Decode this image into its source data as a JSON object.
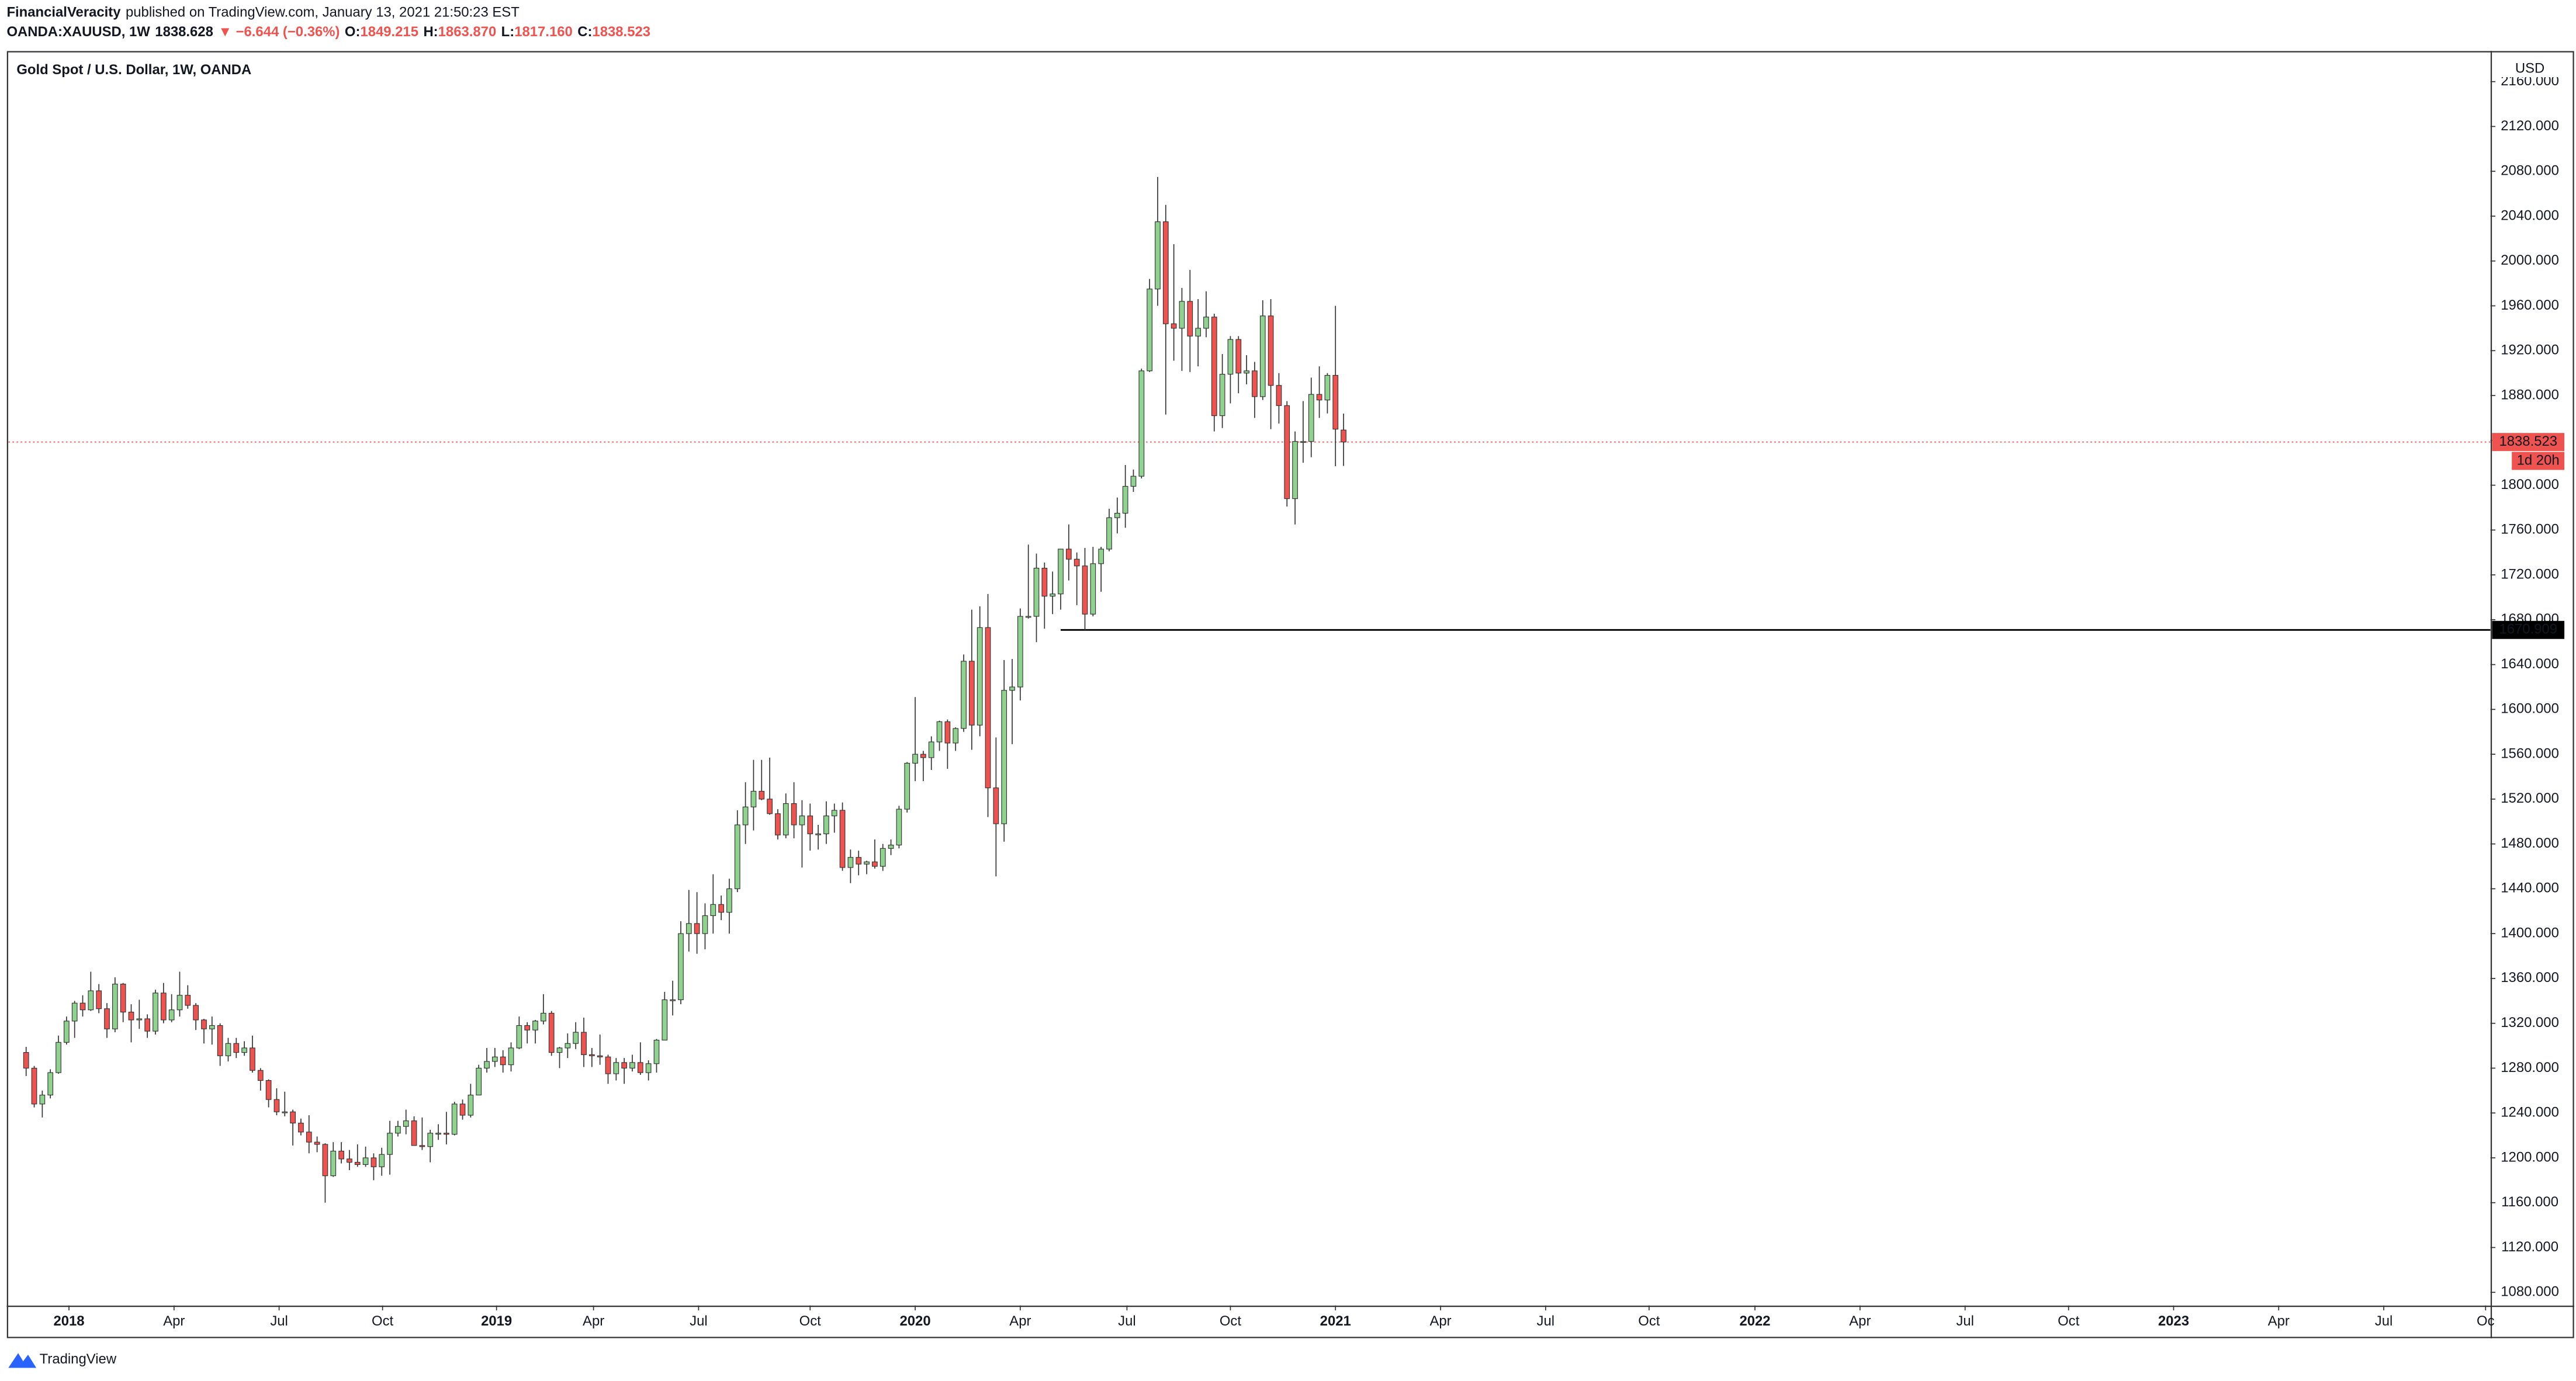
{
  "header": {
    "author": "FinancialVeracity",
    "published": "published on TradingView.com, January 13, 2021 21:50:23 EST",
    "quote": [
      {
        "text": "OANDA:XAUUSD, 1W",
        "color": "#131722"
      },
      {
        "text": "1838.628",
        "color": "#131722"
      },
      {
        "text": "▼ −6.644 (−0.36%)",
        "color": "#ef5350"
      },
      {
        "text": "O:",
        "color": "#131722"
      },
      {
        "text": "1849.215",
        "color": "#ef5350"
      },
      {
        "text": "H:",
        "color": "#131722"
      },
      {
        "text": "1863.870",
        "color": "#ef5350"
      },
      {
        "text": "L:",
        "color": "#131722"
      },
      {
        "text": "1817.160",
        "color": "#ef5350"
      },
      {
        "text": "C:",
        "color": "#131722"
      },
      {
        "text": "1838.523",
        "color": "#ef5350"
      }
    ]
  },
  "chart_data": {
    "type": "candlestick",
    "title": "Gold Spot / U.S. Dollar, 1W, OANDA",
    "y_unit": "USD",
    "up_color": "#8fd18f",
    "down_color": "#ef5350",
    "outline_color": "#333333",
    "open": [
      1294,
      1280,
      1248,
      1256,
      1276,
      1303,
      1322,
      1338,
      1332,
      1349,
      1333,
      1315,
      1355,
      1330,
      1323,
      1324,
      1313,
      1347,
      1323,
      1332,
      1345,
      1336,
      1323,
      1315,
      1318,
      1291,
      1302,
      1294,
      1298,
      1278,
      1269,
      1252,
      1241,
      1241,
      1231,
      1223,
      1214,
      1212,
      1184,
      1206,
      1199,
      1196,
      1194,
      1200,
      1192,
      1203,
      1222,
      1228,
      1233,
      1211,
      1210,
      1222,
      1222,
      1221,
      1248,
      1238,
      1256,
      1280,
      1286,
      1290,
      1283,
      1298,
      1318,
      1314,
      1322,
      1329,
      1294,
      1298,
      1302,
      1312,
      1292,
      1291,
      1290,
      1275,
      1285,
      1280,
      1285,
      1276,
      1284,
      1305,
      1341,
      1341,
      1400,
      1409,
      1400,
      1416,
      1426,
      1419,
      1440,
      1497,
      1513,
      1527,
      1520,
      1507,
      1488,
      1516,
      1497,
      1505,
      1489,
      1489,
      1505,
      1510,
      1459,
      1468,
      1462,
      1464,
      1460,
      1476,
      1479,
      1511,
      1552,
      1560,
      1557,
      1571,
      1589,
      1570,
      1583,
      1643,
      1586,
      1673,
      1530,
      1498,
      1617,
      1620,
      1683,
      1683,
      1726,
      1701,
      1703,
      1743,
      1734,
      1728,
      1685,
      1730,
      1743,
      1771,
      1775,
      1799,
      1808,
      1902,
      1975,
      2035,
      1944,
      1940,
      1964,
      1933,
      1940,
      1950,
      1862,
      1899,
      1930,
      1900,
      1902,
      1879,
      1951,
      1889,
      1871,
      1788,
      1839,
      1839,
      1881,
      1876,
      1898,
      1849.215
    ],
    "high": [
      1299,
      1282,
      1260,
      1279,
      1309,
      1326,
      1340,
      1345,
      1366,
      1355,
      1338,
      1361,
      1356,
      1337,
      1341,
      1328,
      1350,
      1356,
      1346,
      1366,
      1354,
      1338,
      1324,
      1326,
      1320,
      1307,
      1307,
      1304,
      1309,
      1280,
      1270,
      1262,
      1259,
      1243,
      1235,
      1238,
      1219,
      1213,
      1214,
      1214,
      1207,
      1212,
      1210,
      1204,
      1209,
      1233,
      1233,
      1243,
      1237,
      1236,
      1225,
      1230,
      1241,
      1250,
      1252,
      1266,
      1283,
      1298,
      1298,
      1296,
      1303,
      1326,
      1321,
      1323,
      1346,
      1331,
      1299,
      1311,
      1321,
      1325,
      1298,
      1310,
      1292,
      1289,
      1289,
      1292,
      1303,
      1287,
      1306,
      1348,
      1358,
      1411,
      1439,
      1437,
      1427,
      1453,
      1434,
      1449,
      1510,
      1535,
      1555,
      1555,
      1557,
      1511,
      1525,
      1535,
      1519,
      1516,
      1497,
      1518,
      1516,
      1517,
      1475,
      1474,
      1465,
      1484,
      1480,
      1484,
      1514,
      1553,
      1611,
      1563,
      1576,
      1590,
      1591,
      1584,
      1649,
      1689,
      1692,
      1703,
      1575,
      1644,
      1645,
      1690,
      1747,
      1739,
      1731,
      1723,
      1743,
      1765,
      1740,
      1744,
      1745,
      1745,
      1779,
      1789,
      1818,
      1814,
      1904,
      1984,
      2075,
      2050,
      2015,
      1976,
      1992,
      1966,
      1973,
      1953,
      1917,
      1933,
      1933,
      1916,
      1910,
      1965,
      1966,
      1900,
      1875,
      1848,
      1875,
      1896,
      1906,
      1900,
      1960,
      1863.87
    ],
    "low": [
      1273,
      1245,
      1236,
      1253,
      1275,
      1301,
      1307,
      1326,
      1331,
      1329,
      1307,
      1312,
      1321,
      1303,
      1315,
      1307,
      1310,
      1320,
      1321,
      1326,
      1333,
      1314,
      1302,
      1301,
      1282,
      1286,
      1289,
      1291,
      1276,
      1260,
      1245,
      1238,
      1237,
      1211,
      1220,
      1204,
      1205,
      1160,
      1183,
      1195,
      1189,
      1192,
      1192,
      1180,
      1184,
      1185,
      1219,
      1221,
      1211,
      1207,
      1196,
      1216,
      1212,
      1220,
      1234,
      1236,
      1256,
      1276,
      1281,
      1276,
      1277,
      1297,
      1302,
      1302,
      1319,
      1291,
      1280,
      1289,
      1297,
      1281,
      1281,
      1283,
      1266,
      1269,
      1266,
      1277,
      1274,
      1269,
      1276,
      1305,
      1327,
      1337,
      1384,
      1382,
      1386,
      1400,
      1412,
      1400,
      1437,
      1480,
      1492,
      1519,
      1506,
      1484,
      1485,
      1485,
      1459,
      1474,
      1475,
      1480,
      1490,
      1456,
      1445,
      1452,
      1453,
      1458,
      1456,
      1470,
      1476,
      1508,
      1536,
      1536,
      1546,
      1563,
      1547,
      1563,
      1580,
      1564,
      1576,
      1504,
      1451,
      1482,
      1569,
      1608,
      1681,
      1660,
      1672,
      1685,
      1689,
      1715,
      1693,
      1670,
      1683,
      1705,
      1741,
      1757,
      1762,
      1794,
      1806,
      1901,
      1960,
      1863,
      1911,
      1902,
      1901,
      1906,
      1932,
      1848,
      1851,
      1873,
      1882,
      1890,
      1860,
      1876,
      1850,
      1855,
      1781,
      1765,
      1820,
      1825,
      1860,
      1864,
      1817,
      1817.16
    ],
    "close": [
      1280,
      1248,
      1256,
      1276,
      1303,
      1322,
      1338,
      1332,
      1349,
      1333,
      1315,
      1355,
      1330,
      1323,
      1324,
      1313,
      1347,
      1323,
      1332,
      1345,
      1336,
      1323,
      1315,
      1318,
      1291,
      1302,
      1294,
      1298,
      1278,
      1269,
      1252,
      1241,
      1241,
      1231,
      1223,
      1214,
      1212,
      1184,
      1206,
      1199,
      1196,
      1194,
      1200,
      1192,
      1203,
      1222,
      1228,
      1233,
      1211,
      1210,
      1222,
      1222,
      1221,
      1248,
      1238,
      1256,
      1280,
      1286,
      1290,
      1283,
      1298,
      1318,
      1314,
      1322,
      1329,
      1294,
      1298,
      1302,
      1312,
      1292,
      1291,
      1290,
      1275,
      1285,
      1280,
      1285,
      1276,
      1284,
      1305,
      1341,
      1341,
      1400,
      1409,
      1400,
      1416,
      1426,
      1419,
      1440,
      1497,
      1513,
      1527,
      1520,
      1507,
      1488,
      1516,
      1497,
      1505,
      1489,
      1489,
      1505,
      1510,
      1459,
      1468,
      1462,
      1464,
      1460,
      1476,
      1479,
      1511,
      1552,
      1560,
      1557,
      1571,
      1589,
      1570,
      1583,
      1643,
      1586,
      1673,
      1530,
      1498,
      1617,
      1620,
      1683,
      1683,
      1726,
      1701,
      1703,
      1743,
      1734,
      1728,
      1685,
      1730,
      1743,
      1771,
      1775,
      1799,
      1808,
      1902,
      1975,
      2035,
      1944,
      1940,
      1964,
      1933,
      1940,
      1950,
      1862,
      1899,
      1930,
      1900,
      1902,
      1879,
      1951,
      1889,
      1871,
      1788,
      1839,
      1839,
      1881,
      1876,
      1898,
      1850,
      1838.523
    ],
    "xlim": [
      -2.2,
      304.9
    ],
    "xticks": [
      {
        "value": 5.3,
        "label": "2018"
      },
      {
        "value": 18.3,
        "label": "Apr"
      },
      {
        "value": 31.3,
        "label": "Jul"
      },
      {
        "value": 44.1,
        "label": "Oct"
      },
      {
        "value": 58.2,
        "label": "2019"
      },
      {
        "value": 70.2,
        "label": "Apr"
      },
      {
        "value": 83.2,
        "label": "Jul"
      },
      {
        "value": 97,
        "label": "Oct"
      },
      {
        "value": 110,
        "label": "2020"
      },
      {
        "value": 123,
        "label": "Apr"
      },
      {
        "value": 136.2,
        "label": "Jul"
      },
      {
        "value": 149,
        "label": "Oct"
      },
      {
        "value": 162,
        "label": "2021"
      },
      {
        "value": 175,
        "label": "Apr"
      },
      {
        "value": 188,
        "label": "Jul"
      },
      {
        "value": 200.8,
        "label": "Oct"
      },
      {
        "value": 213.9,
        "label": "2022"
      },
      {
        "value": 226.9,
        "label": "Apr"
      },
      {
        "value": 239.9,
        "label": "Jul"
      },
      {
        "value": 252.7,
        "label": "Oct"
      },
      {
        "value": 265.7,
        "label": "2023"
      },
      {
        "value": 278.7,
        "label": "Apr"
      },
      {
        "value": 291.7,
        "label": "Jul"
      },
      {
        "value": 304.3,
        "label": "Oc"
      }
    ],
    "ylim": [
      1068.3,
      2187.4
    ],
    "yticks": [
      {
        "value": 1080,
        "label": "1080.000"
      },
      {
        "value": 1120,
        "label": "1120.000"
      },
      {
        "value": 1160,
        "label": "1160.000"
      },
      {
        "value": 1200,
        "label": "1200.000"
      },
      {
        "value": 1240,
        "label": "1240.000"
      },
      {
        "value": 1280,
        "label": "1280.000"
      },
      {
        "value": 1320,
        "label": "1320.000"
      },
      {
        "value": 1360,
        "label": "1360.000"
      },
      {
        "value": 1400,
        "label": "1400.000"
      },
      {
        "value": 1440,
        "label": "1440.000"
      },
      {
        "value": 1480,
        "label": "1480.000"
      },
      {
        "value": 1520,
        "label": "1520.000"
      },
      {
        "value": 1560,
        "label": "1560.000"
      },
      {
        "value": 1600,
        "label": "1600.000"
      },
      {
        "value": 1640,
        "label": "1640.000"
      },
      {
        "value": 1680,
        "label": "1680.000"
      },
      {
        "value": 1720,
        "label": "1720.000"
      },
      {
        "value": 1760,
        "label": "1760.000"
      },
      {
        "value": 1800,
        "label": "1800.000"
      },
      {
        "value": 1840,
        "label": "1840.000"
      },
      {
        "value": 1880,
        "label": "1880.000"
      },
      {
        "value": 1920,
        "label": "1920.000"
      },
      {
        "value": 1960,
        "label": "1960.000"
      },
      {
        "value": 2000,
        "label": "2000.000"
      },
      {
        "value": 2040,
        "label": "2040.000"
      },
      {
        "value": 2080,
        "label": "2080.000"
      },
      {
        "value": 2120,
        "label": "2120.000"
      },
      {
        "value": 2160,
        "label": "2160.000"
      }
    ],
    "last_price": {
      "countdown": "1d 20h",
      "color": "#ef5350"
    },
    "hline": {
      "value": 1670.909,
      "start": 128,
      "color": "#000000"
    }
  },
  "footer": {
    "brand": "TradingView"
  }
}
